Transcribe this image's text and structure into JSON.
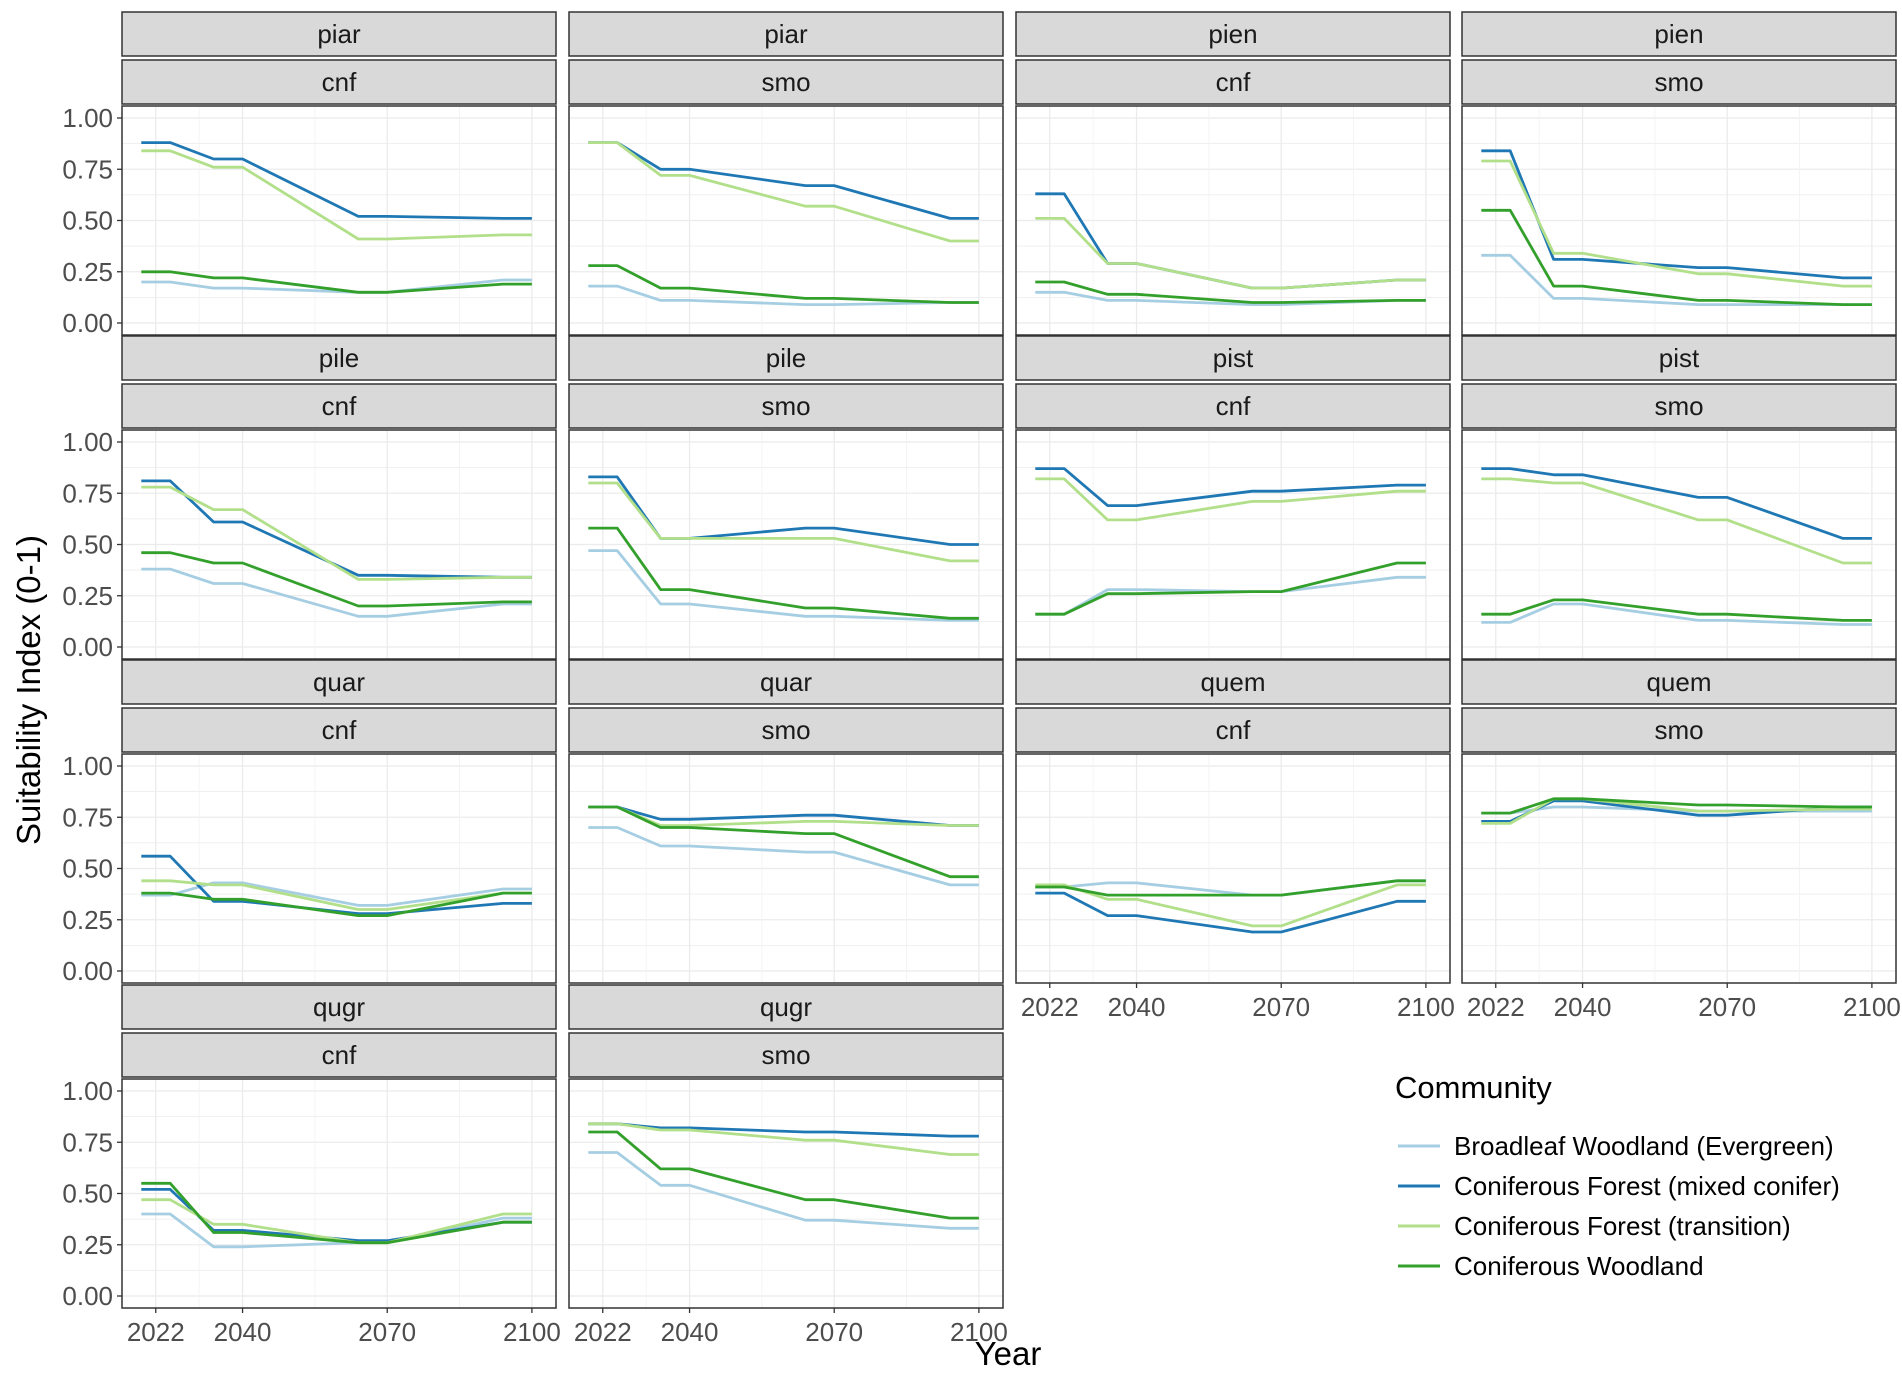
{
  "chart_data": {
    "type": "line",
    "title": "",
    "xlabel": "Year",
    "ylabel": "Suitability Index (0-1)",
    "x": [
      2022,
      2040,
      2070,
      2100
    ],
    "xlim": [
      2015,
      2105
    ],
    "ylim": [
      0,
      1
    ],
    "x_ticks": [
      2022,
      2040,
      2070,
      2100
    ],
    "y_ticks": [
      "0.00",
      "0.25",
      "0.50",
      "0.75",
      "1.00"
    ],
    "grid": true,
    "legend": {
      "title": "Community",
      "position": "bottom-right",
      "entries": [
        {
          "name": "Broadleaf Woodland (Evergreen)",
          "color": "#a6cee3"
        },
        {
          "name": "Coniferous Forest (mixed conifer)",
          "color": "#1f78b4"
        },
        {
          "name": "Coniferous Forest (transition)",
          "color": "#b2df8a"
        },
        {
          "name": "Coniferous Woodland",
          "color": "#33a02c"
        }
      ]
    },
    "panels": [
      {
        "species": "piar",
        "scenario": "cnf",
        "series": [
          {
            "name": "Broadleaf Woodland (Evergreen)",
            "values": [
              0.2,
              0.17,
              0.15,
              0.21
            ]
          },
          {
            "name": "Coniferous Forest (mixed conifer)",
            "values": [
              0.88,
              0.8,
              0.52,
              0.51
            ]
          },
          {
            "name": "Coniferous Forest (transition)",
            "values": [
              0.84,
              0.76,
              0.41,
              0.43
            ]
          },
          {
            "name": "Coniferous Woodland",
            "values": [
              0.25,
              0.22,
              0.15,
              0.19
            ]
          }
        ]
      },
      {
        "species": "piar",
        "scenario": "smo",
        "series": [
          {
            "name": "Broadleaf Woodland (Evergreen)",
            "values": [
              0.18,
              0.11,
              0.09,
              0.1
            ]
          },
          {
            "name": "Coniferous Forest (mixed conifer)",
            "values": [
              0.88,
              0.75,
              0.67,
              0.51
            ]
          },
          {
            "name": "Coniferous Forest (transition)",
            "values": [
              0.88,
              0.72,
              0.57,
              0.4
            ]
          },
          {
            "name": "Coniferous Woodland",
            "values": [
              0.28,
              0.17,
              0.12,
              0.1
            ]
          }
        ]
      },
      {
        "species": "pien",
        "scenario": "cnf",
        "series": [
          {
            "name": "Broadleaf Woodland (Evergreen)",
            "values": [
              0.15,
              0.11,
              0.09,
              0.11
            ]
          },
          {
            "name": "Coniferous Forest (mixed conifer)",
            "values": [
              0.63,
              0.29,
              0.17,
              0.21
            ]
          },
          {
            "name": "Coniferous Forest (transition)",
            "values": [
              0.51,
              0.29,
              0.17,
              0.21
            ]
          },
          {
            "name": "Coniferous Woodland",
            "values": [
              0.2,
              0.14,
              0.1,
              0.11
            ]
          }
        ]
      },
      {
        "species": "pien",
        "scenario": "smo",
        "series": [
          {
            "name": "Broadleaf Woodland (Evergreen)",
            "values": [
              0.33,
              0.12,
              0.09,
              0.09
            ]
          },
          {
            "name": "Coniferous Forest (mixed conifer)",
            "values": [
              0.84,
              0.31,
              0.27,
              0.22
            ]
          },
          {
            "name": "Coniferous Forest (transition)",
            "values": [
              0.79,
              0.34,
              0.24,
              0.18
            ]
          },
          {
            "name": "Coniferous Woodland",
            "values": [
              0.55,
              0.18,
              0.11,
              0.09
            ]
          }
        ]
      },
      {
        "species": "pile",
        "scenario": "cnf",
        "series": [
          {
            "name": "Broadleaf Woodland (Evergreen)",
            "values": [
              0.38,
              0.31,
              0.15,
              0.21
            ]
          },
          {
            "name": "Coniferous Forest (mixed conifer)",
            "values": [
              0.81,
              0.61,
              0.35,
              0.34
            ]
          },
          {
            "name": "Coniferous Forest (transition)",
            "values": [
              0.78,
              0.67,
              0.33,
              0.34
            ]
          },
          {
            "name": "Coniferous Woodland",
            "values": [
              0.46,
              0.41,
              0.2,
              0.22
            ]
          }
        ]
      },
      {
        "species": "pile",
        "scenario": "smo",
        "series": [
          {
            "name": "Broadleaf Woodland (Evergreen)",
            "values": [
              0.47,
              0.21,
              0.15,
              0.13
            ]
          },
          {
            "name": "Coniferous Forest (mixed conifer)",
            "values": [
              0.83,
              0.53,
              0.58,
              0.5
            ]
          },
          {
            "name": "Coniferous Forest (transition)",
            "values": [
              0.8,
              0.53,
              0.53,
              0.42
            ]
          },
          {
            "name": "Coniferous Woodland",
            "values": [
              0.58,
              0.28,
              0.19,
              0.14
            ]
          }
        ]
      },
      {
        "species": "pist",
        "scenario": "cnf",
        "series": [
          {
            "name": "Broadleaf Woodland (Evergreen)",
            "values": [
              0.16,
              0.28,
              0.27,
              0.34
            ]
          },
          {
            "name": "Coniferous Forest (mixed conifer)",
            "values": [
              0.87,
              0.69,
              0.76,
              0.79
            ]
          },
          {
            "name": "Coniferous Forest (transition)",
            "values": [
              0.82,
              0.62,
              0.71,
              0.76
            ]
          },
          {
            "name": "Coniferous Woodland",
            "values": [
              0.16,
              0.26,
              0.27,
              0.41
            ]
          }
        ]
      },
      {
        "species": "pist",
        "scenario": "smo",
        "series": [
          {
            "name": "Broadleaf Woodland (Evergreen)",
            "values": [
              0.12,
              0.21,
              0.13,
              0.11
            ]
          },
          {
            "name": "Coniferous Forest (mixed conifer)",
            "values": [
              0.87,
              0.84,
              0.73,
              0.53
            ]
          },
          {
            "name": "Coniferous Forest (transition)",
            "values": [
              0.82,
              0.8,
              0.62,
              0.41
            ]
          },
          {
            "name": "Coniferous Woodland",
            "values": [
              0.16,
              0.23,
              0.16,
              0.13
            ]
          }
        ]
      },
      {
        "species": "quar",
        "scenario": "cnf",
        "series": [
          {
            "name": "Broadleaf Woodland (Evergreen)",
            "values": [
              0.37,
              0.43,
              0.32,
              0.4
            ]
          },
          {
            "name": "Coniferous Forest (mixed conifer)",
            "values": [
              0.56,
              0.34,
              0.28,
              0.33
            ]
          },
          {
            "name": "Coniferous Forest (transition)",
            "values": [
              0.44,
              0.42,
              0.3,
              0.38
            ]
          },
          {
            "name": "Coniferous Woodland",
            "values": [
              0.38,
              0.35,
              0.27,
              0.38
            ]
          }
        ]
      },
      {
        "species": "quar",
        "scenario": "smo",
        "series": [
          {
            "name": "Broadleaf Woodland (Evergreen)",
            "values": [
              0.7,
              0.61,
              0.58,
              0.42
            ]
          },
          {
            "name": "Coniferous Forest (mixed conifer)",
            "values": [
              0.8,
              0.74,
              0.76,
              0.71
            ]
          },
          {
            "name": "Coniferous Forest (transition)",
            "values": [
              0.8,
              0.71,
              0.73,
              0.71
            ]
          },
          {
            "name": "Coniferous Woodland",
            "values": [
              0.8,
              0.7,
              0.67,
              0.46
            ]
          }
        ]
      },
      {
        "species": "quem",
        "scenario": "cnf",
        "series": [
          {
            "name": "Broadleaf Woodland (Evergreen)",
            "values": [
              0.41,
              0.43,
              0.37,
              0.44
            ]
          },
          {
            "name": "Coniferous Forest (mixed conifer)",
            "values": [
              0.38,
              0.27,
              0.19,
              0.34
            ]
          },
          {
            "name": "Coniferous Forest (transition)",
            "values": [
              0.42,
              0.35,
              0.22,
              0.42
            ]
          },
          {
            "name": "Coniferous Woodland",
            "values": [
              0.41,
              0.37,
              0.37,
              0.44
            ]
          }
        ]
      },
      {
        "species": "quem",
        "scenario": "smo",
        "series": [
          {
            "name": "Broadleaf Woodland (Evergreen)",
            "values": [
              0.77,
              0.8,
              0.78,
              0.78
            ]
          },
          {
            "name": "Coniferous Forest (mixed conifer)",
            "values": [
              0.73,
              0.83,
              0.76,
              0.8
            ]
          },
          {
            "name": "Coniferous Forest (transition)",
            "values": [
              0.72,
              0.84,
              0.78,
              0.79
            ]
          },
          {
            "name": "Coniferous Woodland",
            "values": [
              0.77,
              0.84,
              0.81,
              0.8
            ]
          }
        ]
      },
      {
        "species": "qugr",
        "scenario": "cnf",
        "series": [
          {
            "name": "Broadleaf Woodland (Evergreen)",
            "values": [
              0.4,
              0.24,
              0.26,
              0.38
            ]
          },
          {
            "name": "Coniferous Forest (mixed conifer)",
            "values": [
              0.52,
              0.32,
              0.27,
              0.36
            ]
          },
          {
            "name": "Coniferous Forest (transition)",
            "values": [
              0.47,
              0.35,
              0.26,
              0.4
            ]
          },
          {
            "name": "Coniferous Woodland",
            "values": [
              0.55,
              0.31,
              0.26,
              0.36
            ]
          }
        ]
      },
      {
        "species": "qugr",
        "scenario": "smo",
        "series": [
          {
            "name": "Broadleaf Woodland (Evergreen)",
            "values": [
              0.7,
              0.54,
              0.37,
              0.33
            ]
          },
          {
            "name": "Coniferous Forest (mixed conifer)",
            "values": [
              0.84,
              0.82,
              0.8,
              0.78
            ]
          },
          {
            "name": "Coniferous Forest (transition)",
            "values": [
              0.84,
              0.81,
              0.76,
              0.69
            ]
          },
          {
            "name": "Coniferous Woodland",
            "values": [
              0.8,
              0.62,
              0.47,
              0.38
            ]
          }
        ]
      }
    ]
  }
}
